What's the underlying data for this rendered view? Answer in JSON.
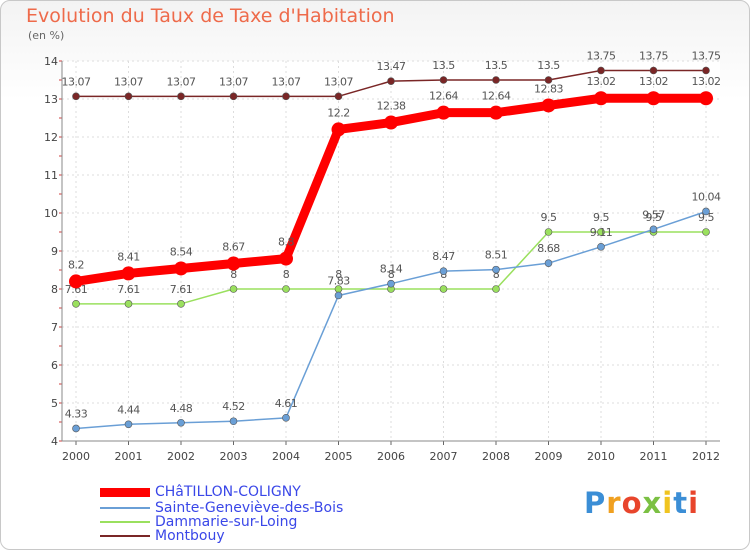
{
  "header": {
    "title": "Evolution du Taux de Taxe d'Habitation",
    "unit": "(en %)"
  },
  "logo": {
    "text": "Proxiti"
  },
  "chart_data": {
    "type": "line",
    "title": "Evolution du Taux de Taxe d'Habitation",
    "ylabel": "(en %)",
    "ylim": [
      4,
      14
    ],
    "yticks": [
      4,
      5,
      6,
      7,
      8,
      9,
      10,
      11,
      12,
      13,
      14
    ],
    "x": [
      "2000",
      "2001",
      "2002",
      "2003",
      "2004",
      "2005",
      "2006",
      "2007",
      "2008",
      "2009",
      "2010",
      "2011",
      "2012"
    ],
    "grid": true,
    "legend_position": "bottom-left",
    "series": [
      {
        "name": "Montbouy",
        "color": "#7a2626",
        "values": [
          13.07,
          13.07,
          13.07,
          13.07,
          13.07,
          13.07,
          13.47,
          13.5,
          13.5,
          13.5,
          13.75,
          13.75,
          13.75
        ],
        "labels": [
          "13.07",
          "13.07",
          "13.07",
          "13.07",
          "13.07",
          "13.07",
          "13.47",
          "13.5",
          "13.5",
          "13.5",
          "13.75",
          "13.75",
          "13.75"
        ]
      },
      {
        "name": "Dammarie-sur-Loing",
        "color": "#9ae05e",
        "values": [
          7.61,
          7.61,
          7.61,
          8,
          8,
          8,
          8,
          8,
          8,
          9.5,
          9.5,
          9.5,
          9.5
        ],
        "labels": [
          "7.61",
          "7.61",
          "7.61",
          "8",
          "8",
          "8",
          "8",
          "8",
          "8",
          "9.5",
          "9.5",
          "9.5",
          "9.5"
        ]
      },
      {
        "name": "Sainte-Geneviève-des-Bois",
        "color": "#6a9fd6",
        "values": [
          4.33,
          4.44,
          4.48,
          4.52,
          4.61,
          7.83,
          8.14,
          8.47,
          8.51,
          8.68,
          9.11,
          9.57,
          10.04
        ],
        "labels": [
          "4.33",
          "4.44",
          "4.48",
          "4.52",
          "4.61",
          "7.83",
          "8.14",
          "8.47",
          "8.51",
          "8.68",
          "9.11",
          "9.57",
          "10.04"
        ]
      },
      {
        "name": "CHâTILLON-COLIGNY",
        "color": "#ff0000",
        "values": [
          8.2,
          8.41,
          8.54,
          8.67,
          8.8,
          12.2,
          12.38,
          12.64,
          12.64,
          12.83,
          13.02,
          13.02,
          13.02
        ],
        "labels": [
          "8.2",
          "8.41",
          "8.54",
          "8.67",
          "8.8",
          "12.2",
          "12.38",
          "12.64",
          "12.64",
          "12.83",
          "13.02",
          "13.02",
          "13.02"
        ]
      }
    ],
    "legend": [
      "CHâTILLON-COLIGNY",
      "Sainte-Geneviève-des-Bois",
      "Dammarie-sur-Loing",
      "Montbouy"
    ]
  }
}
